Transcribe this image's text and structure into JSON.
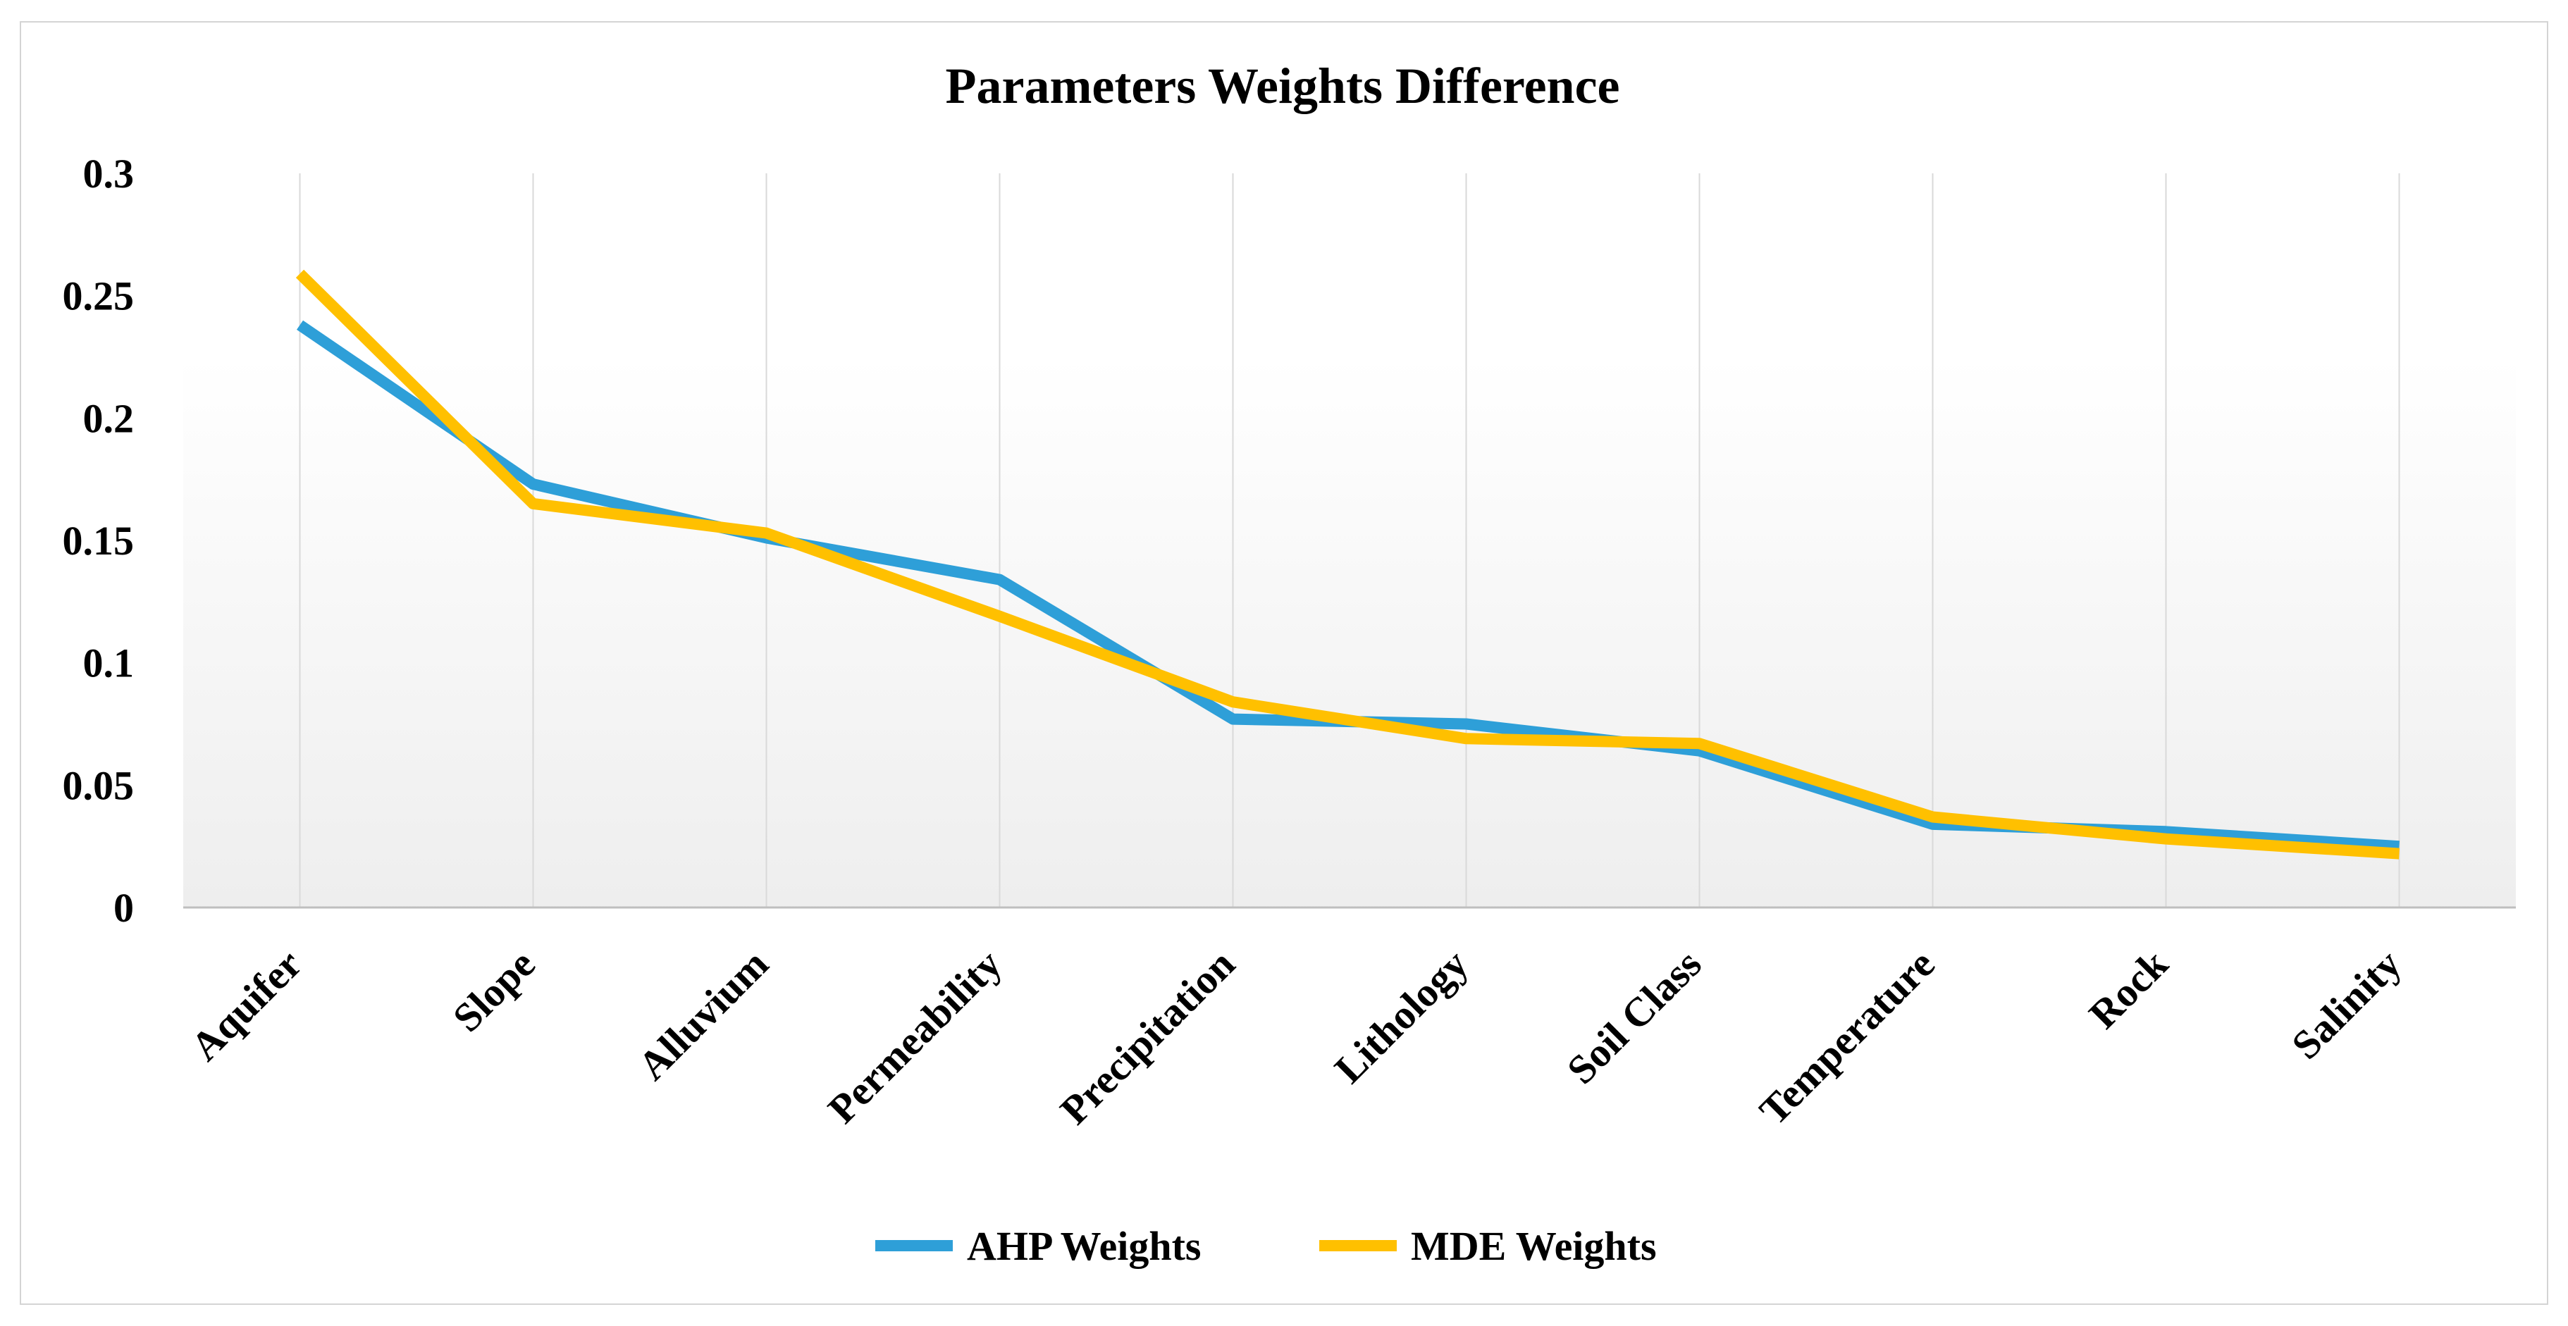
{
  "chart_data": {
    "type": "line",
    "title": "Parameters Weights Difference",
    "xlabel": "",
    "ylabel": "",
    "categories": [
      "Aquifer",
      "Slope",
      "Alluvium",
      "Permeability",
      "Precipitation",
      "Lithology",
      "Soil Class",
      "Temperature",
      "Rock",
      "Salinity"
    ],
    "ylim": [
      0,
      0.3
    ],
    "yticks": [
      "0",
      "0.05",
      "0.1",
      "0.15",
      "0.2",
      "0.25",
      "0.3"
    ],
    "grid": "vertical",
    "legend_position": "bottom",
    "series": [
      {
        "name": "AHP Weights",
        "color": "#2e9fd8",
        "values": [
          0.238,
          0.173,
          0.151,
          0.134,
          0.077,
          0.075,
          0.064,
          0.034,
          0.031,
          0.025
        ]
      },
      {
        "name": "MDE Weights",
        "color": "#ffc000",
        "values": [
          0.259,
          0.165,
          0.153,
          0.119,
          0.084,
          0.069,
          0.067,
          0.037,
          0.028,
          0.022
        ]
      }
    ]
  }
}
